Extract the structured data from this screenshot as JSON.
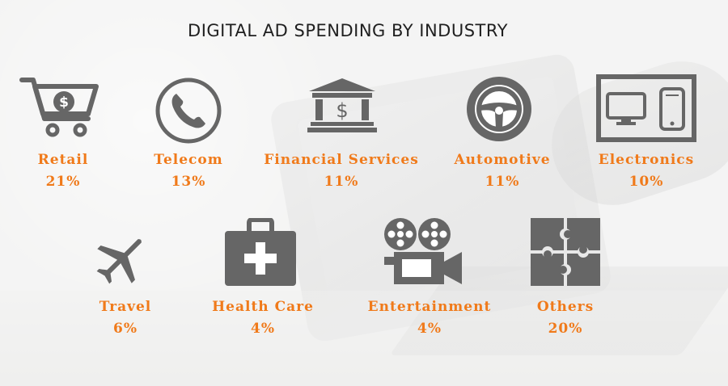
{
  "title": "DIGITAL AD SPENDING BY INDUSTRY",
  "colors": {
    "accent": "#f07a1a",
    "icon_gray": "#666666",
    "title": "#1f1f1f"
  },
  "industries": [
    {
      "label": "Retail",
      "percent": "21%",
      "icon": "shopping-cart-dollar-icon"
    },
    {
      "label": "Telecom",
      "percent": "13%",
      "icon": "telephone-icon"
    },
    {
      "label": "Financial Services",
      "percent": "11%",
      "icon": "bank-dollar-icon"
    },
    {
      "label": "Automotive",
      "percent": "11%",
      "icon": "steering-wheel-icon"
    },
    {
      "label": "Electronics",
      "percent": "10%",
      "icon": "monitor-phone-icon"
    },
    {
      "label": "Travel",
      "percent": "6%",
      "icon": "airplane-icon"
    },
    {
      "label": "Health Care",
      "percent": "4%",
      "icon": "first-aid-kit-icon"
    },
    {
      "label": "Entertainment",
      "percent": "4%",
      "icon": "movie-camera-icon"
    },
    {
      "label": "Others",
      "percent": "20%",
      "icon": "puzzle-icon"
    }
  ]
}
